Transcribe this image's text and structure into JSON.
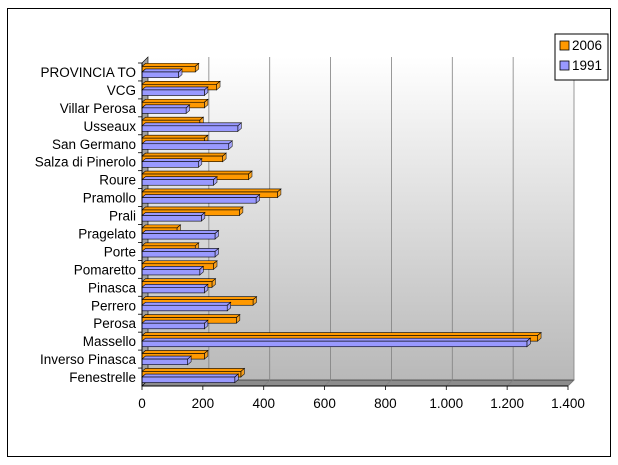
{
  "chart_data": {
    "type": "bar",
    "orientation": "horizontal",
    "categories": [
      "PROVINCIA TO",
      "VCG",
      "Villar Perosa",
      "Usseaux",
      "San Germano",
      "Salza di Pinerolo",
      "Roure",
      "Pramollo",
      "Prali",
      "Pragelato",
      "Porte",
      "Pomaretto",
      "Pinasca",
      "Perrero",
      "Perosa",
      "Massello",
      "Inverso Pinasca",
      "Fenestrelle"
    ],
    "series": [
      {
        "name": "2006",
        "color": "#ff9900",
        "values": [
          175,
          245,
          205,
          190,
          205,
          265,
          350,
          445,
          320,
          115,
          175,
          235,
          230,
          365,
          310,
          1300,
          205,
          325
        ]
      },
      {
        "name": "1991",
        "color": "#9999ff",
        "values": [
          120,
          205,
          145,
          315,
          285,
          185,
          235,
          375,
          195,
          240,
          240,
          190,
          205,
          280,
          205,
          1265,
          150,
          305
        ]
      }
    ],
    "xlim": [
      0,
      1400
    ],
    "xticks": [
      0,
      200,
      400,
      600,
      800,
      1000,
      1200,
      1400
    ],
    "xtick_labels": [
      "0",
      "200",
      "400",
      "600",
      "800",
      "1.000",
      "1.200",
      "1.400"
    ],
    "grid": true,
    "legend_position": "top-right",
    "colors": {
      "plot_gradient_top": "#ffffff",
      "plot_gradient_bottom": "#b7b7b7",
      "gridline": "#808080",
      "bar_outline": "#000000"
    }
  }
}
